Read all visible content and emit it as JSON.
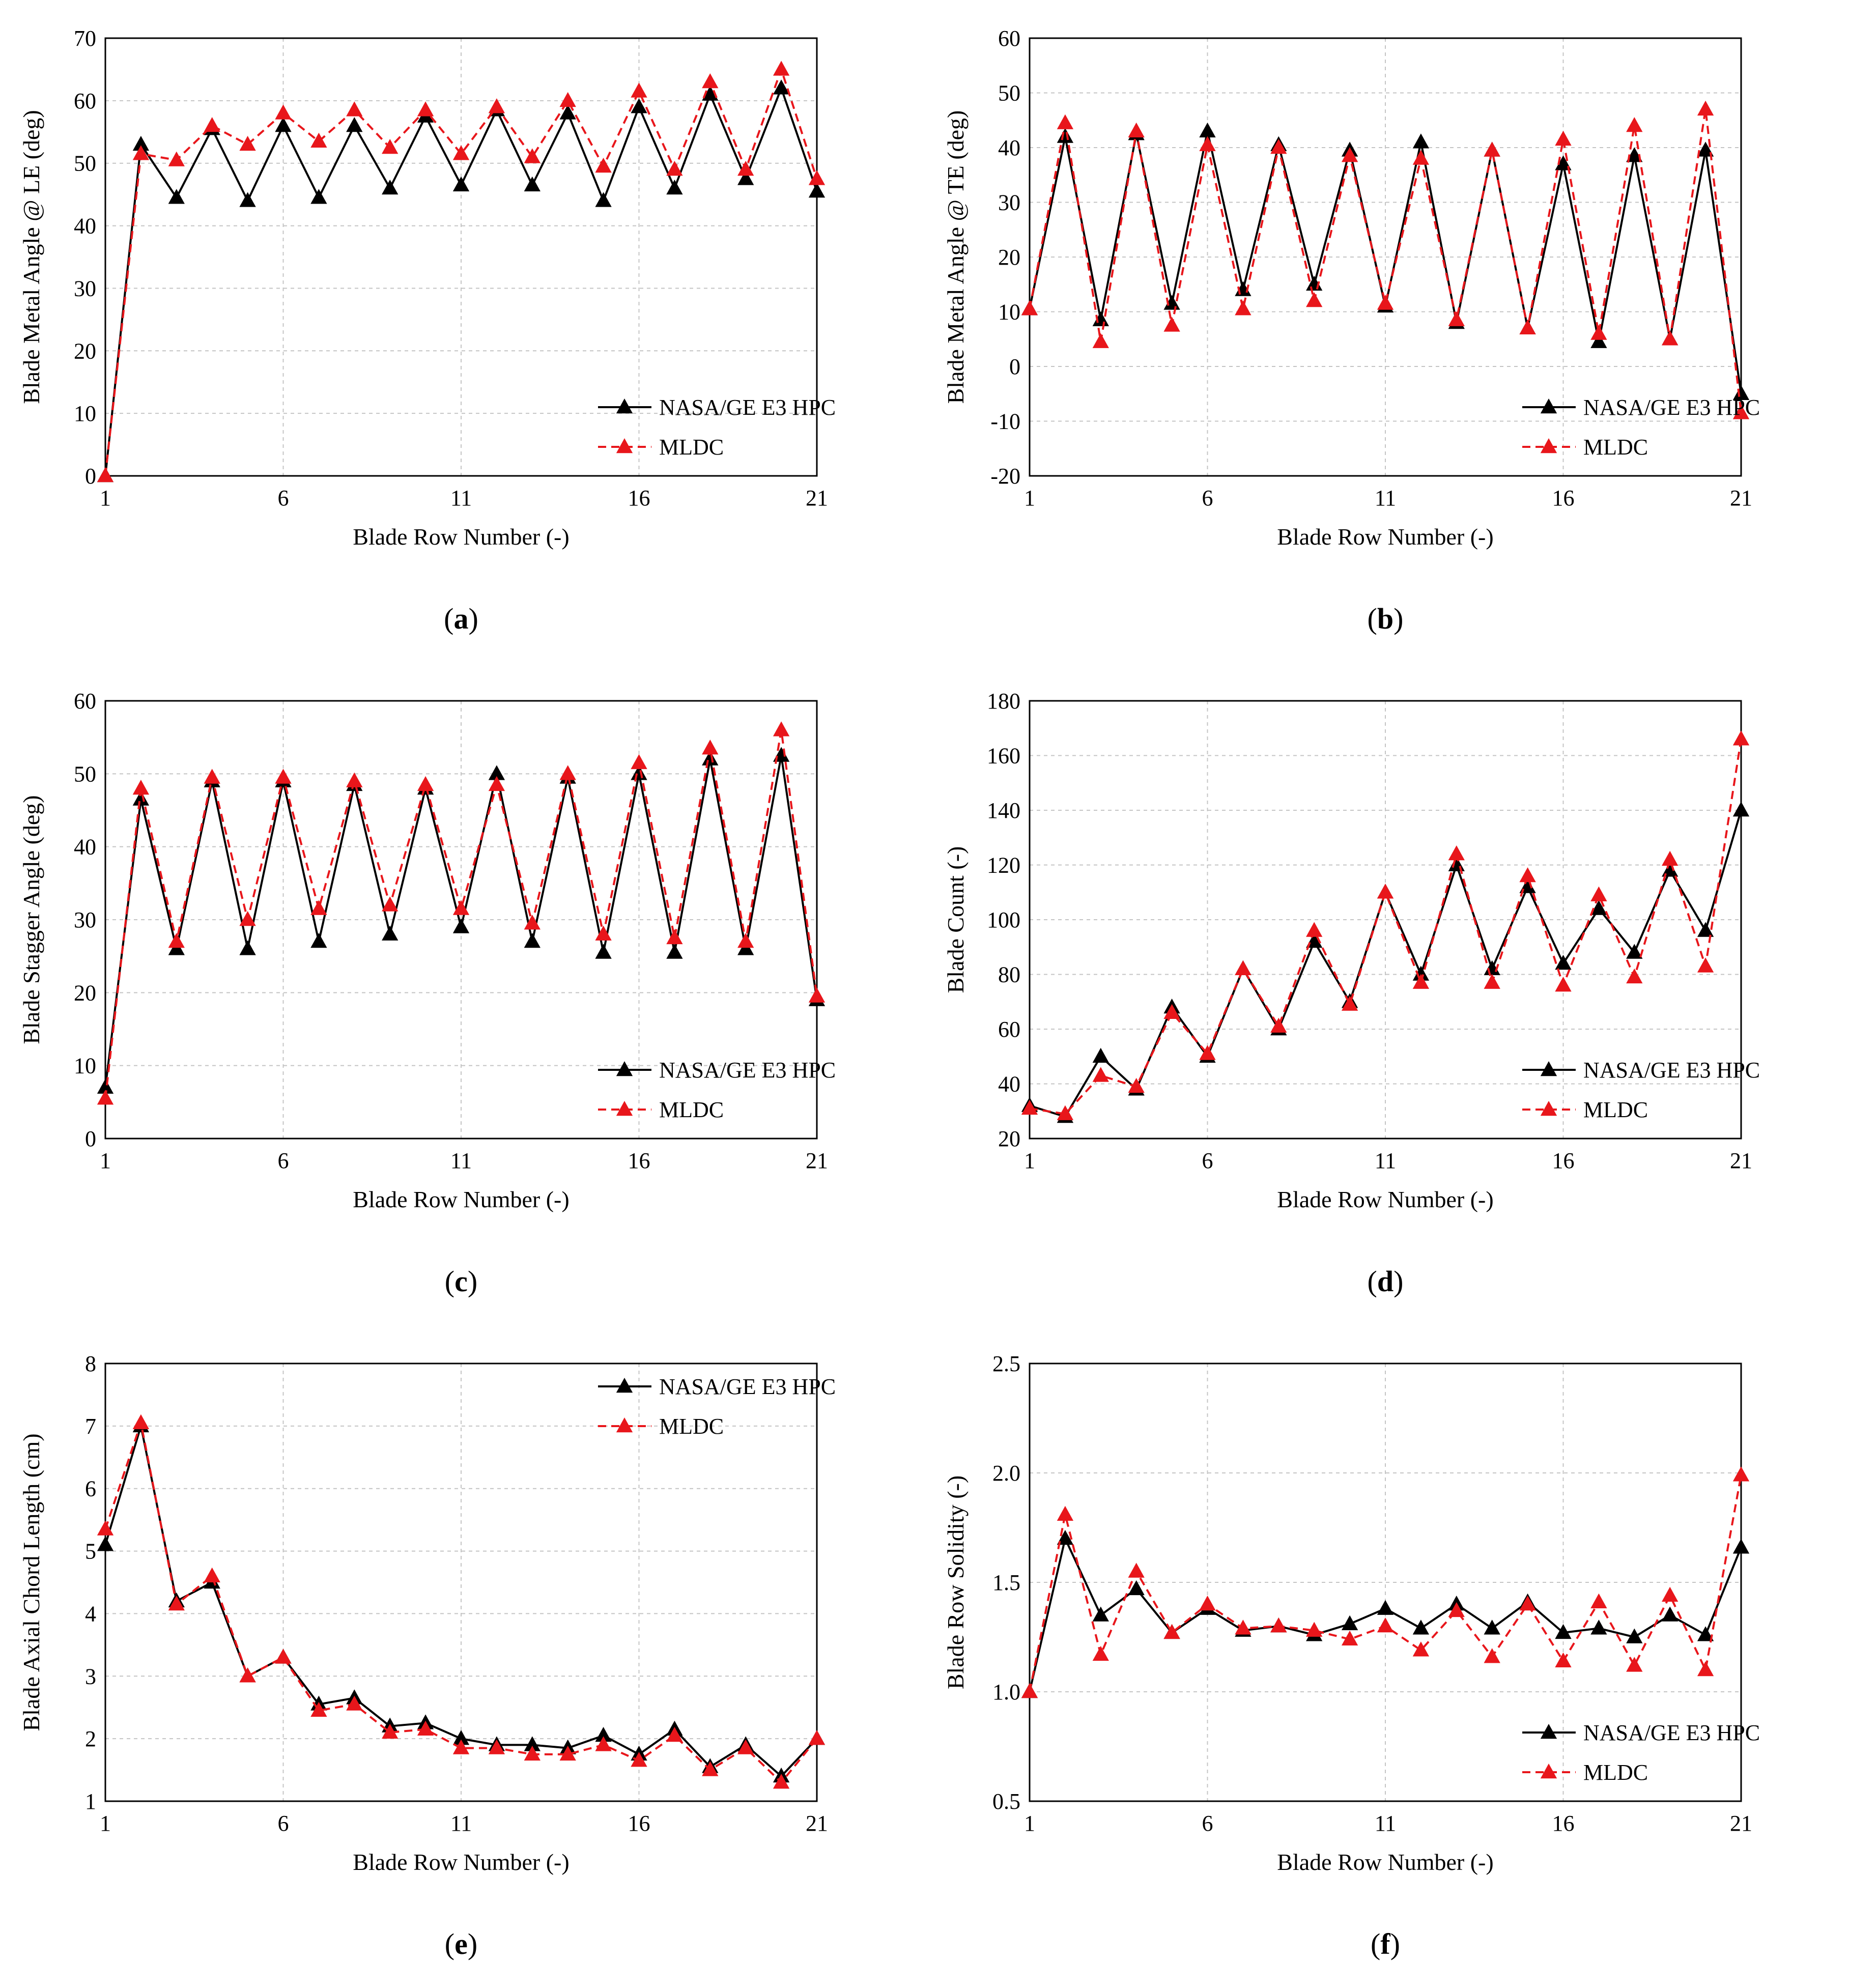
{
  "legend": {
    "series_a": "NASA/GE E3 HPC",
    "series_b": "MLDC"
  },
  "colors": {
    "series_a": "#000000",
    "series_b": "#e8161b",
    "grid": "#c4c4c4"
  },
  "chart_data": [
    {
      "id": "a",
      "caption": "a",
      "type": "line",
      "xlabel": "Blade Row Number (-)",
      "ylabel": "Blade Metal Angle @ LE (deg)",
      "xlim": [
        1,
        21
      ],
      "xticks": [
        "1",
        "6",
        "11",
        "16",
        "21"
      ],
      "ylim": [
        0,
        70
      ],
      "yticks": [
        "0",
        "10",
        "20",
        "30",
        "40",
        "50",
        "60",
        "70"
      ],
      "legend_position": "lower-right",
      "x": [
        1,
        2,
        3,
        4,
        5,
        6,
        7,
        8,
        9,
        10,
        11,
        12,
        13,
        14,
        15,
        16,
        17,
        18,
        19,
        20,
        21
      ],
      "series": [
        {
          "name": "NASA/GE E3 HPC",
          "values": [
            0,
            53,
            44.5,
            55.5,
            44,
            56,
            44.5,
            56,
            46,
            57.5,
            46.5,
            58.5,
            46.5,
            58,
            44,
            59,
            46,
            61,
            47.5,
            62,
            45.5
          ]
        },
        {
          "name": "MLDC",
          "values": [
            0,
            51.5,
            50.5,
            56,
            53,
            58,
            53.5,
            58.5,
            52.5,
            58.5,
            51.5,
            59,
            51,
            60,
            49.5,
            61.5,
            49,
            63,
            49,
            65,
            47.5
          ]
        }
      ]
    },
    {
      "id": "b",
      "caption": "b",
      "type": "line",
      "xlabel": "Blade Row Number (-)",
      "ylabel": "Blade Metal Angle @ TE (deg)",
      "xlim": [
        1,
        21
      ],
      "xticks": [
        "1",
        "6",
        "11",
        "16",
        "21"
      ],
      "ylim": [
        -20,
        60
      ],
      "yticks": [
        "-20",
        "-10",
        "0",
        "10",
        "20",
        "30",
        "40",
        "50",
        "60"
      ],
      "legend_position": "lower-right",
      "x": [
        1,
        2,
        3,
        4,
        5,
        6,
        7,
        8,
        9,
        10,
        11,
        12,
        13,
        14,
        15,
        16,
        17,
        18,
        19,
        20,
        21
      ],
      "series": [
        {
          "name": "NASA/GE E3 HPC",
          "values": [
            10.5,
            42,
            8.5,
            42.5,
            11.5,
            43,
            14,
            40.5,
            15,
            39.5,
            11,
            41,
            8,
            39.5,
            7,
            37,
            4.5,
            38.5,
            5,
            39.5,
            -5
          ]
        },
        {
          "name": "MLDC",
          "values": [
            10.5,
            44.5,
            4.5,
            43,
            7.5,
            40.5,
            10.5,
            40,
            12,
            38.5,
            11.5,
            38,
            8.5,
            39.5,
            7,
            41.5,
            6,
            44,
            5,
            47,
            -8.5
          ]
        }
      ]
    },
    {
      "id": "c",
      "caption": "c",
      "type": "line",
      "xlabel": "Blade Row Number (-)",
      "ylabel": "Blade Stagger Angle (deg)",
      "xlim": [
        1,
        21
      ],
      "xticks": [
        "1",
        "6",
        "11",
        "16",
        "21"
      ],
      "ylim": [
        0,
        60
      ],
      "yticks": [
        "0",
        "10",
        "20",
        "30",
        "40",
        "50",
        "60"
      ],
      "legend_position": "lower-right",
      "x": [
        1,
        2,
        3,
        4,
        5,
        6,
        7,
        8,
        9,
        10,
        11,
        12,
        13,
        14,
        15,
        16,
        17,
        18,
        19,
        20,
        21
      ],
      "series": [
        {
          "name": "NASA/GE E3 HPC",
          "values": [
            7,
            46.5,
            26,
            49,
            26,
            49,
            27,
            48.5,
            28,
            48,
            29,
            50,
            27,
            49.5,
            25.5,
            50,
            25.5,
            52,
            26,
            52.5,
            19
          ]
        },
        {
          "name": "MLDC",
          "values": [
            5.5,
            48,
            27,
            49.5,
            30,
            49.5,
            31.5,
            49,
            32,
            48.5,
            31.5,
            48.5,
            29.5,
            50,
            28,
            51.5,
            27.5,
            53.5,
            27,
            56,
            19.5
          ]
        }
      ]
    },
    {
      "id": "d",
      "caption": "d",
      "type": "line",
      "xlabel": "Blade Row Number (-)",
      "ylabel": "Blade Count (-)",
      "xlim": [
        1,
        21
      ],
      "xticks": [
        "1",
        "6",
        "11",
        "16",
        "21"
      ],
      "ylim": [
        20,
        180
      ],
      "yticks": [
        "20",
        "40",
        "60",
        "80",
        "100",
        "120",
        "140",
        "160",
        "180"
      ],
      "legend_position": "lower-right",
      "x": [
        1,
        2,
        3,
        4,
        5,
        6,
        7,
        8,
        9,
        10,
        11,
        12,
        13,
        14,
        15,
        16,
        17,
        18,
        19,
        20,
        21
      ],
      "series": [
        {
          "name": "NASA/GE E3 HPC",
          "values": [
            32,
            28,
            50,
            38,
            68,
            50,
            82,
            60,
            92,
            70,
            110,
            80,
            120,
            82,
            112,
            84,
            104,
            88,
            118,
            96,
            140
          ]
        },
        {
          "name": "MLDC",
          "values": [
            31,
            29,
            43,
            39,
            66,
            51,
            82,
            61,
            96,
            69,
            110,
            77,
            124,
            77,
            116,
            76,
            109,
            79,
            122,
            83,
            166
          ]
        }
      ]
    },
    {
      "id": "e",
      "caption": "e",
      "type": "line",
      "xlabel": "Blade Row Number (-)",
      "ylabel": "Blade Axial Chord Length (cm)",
      "xlim": [
        1,
        21
      ],
      "xticks": [
        "1",
        "6",
        "11",
        "16",
        "21"
      ],
      "ylim": [
        1,
        8
      ],
      "yticks": [
        "1",
        "2",
        "3",
        "4",
        "5",
        "6",
        "7",
        "8"
      ],
      "legend_position": "upper-right",
      "x": [
        1,
        2,
        3,
        4,
        5,
        6,
        7,
        8,
        9,
        10,
        11,
        12,
        13,
        14,
        15,
        16,
        17,
        18,
        19,
        20,
        21
      ],
      "series": [
        {
          "name": "NASA/GE E3 HPC",
          "values": [
            5.1,
            7.0,
            4.2,
            4.5,
            3.0,
            3.3,
            2.55,
            2.65,
            2.2,
            2.25,
            2.0,
            1.9,
            1.9,
            1.85,
            2.05,
            1.75,
            2.15,
            1.55,
            1.9,
            1.4,
            2.0
          ]
        },
        {
          "name": "MLDC",
          "values": [
            5.35,
            7.05,
            4.15,
            4.6,
            3.0,
            3.3,
            2.45,
            2.55,
            2.1,
            2.15,
            1.85,
            1.85,
            1.75,
            1.75,
            1.9,
            1.65,
            2.05,
            1.5,
            1.85,
            1.3,
            2.0
          ]
        }
      ]
    },
    {
      "id": "f",
      "caption": "f",
      "type": "line",
      "xlabel": "Blade Row Number (-)",
      "ylabel": "Blade Row Solidity (-)",
      "xlim": [
        1,
        21
      ],
      "xticks": [
        "1",
        "6",
        "11",
        "16",
        "21"
      ],
      "ylim": [
        0.5,
        2.5
      ],
      "yticks": [
        "0.5",
        "1.0",
        "1.5",
        "2.0",
        "2.5"
      ],
      "legend_position": "lower-right",
      "x": [
        1,
        2,
        3,
        4,
        5,
        6,
        7,
        8,
        9,
        10,
        11,
        12,
        13,
        14,
        15,
        16,
        17,
        18,
        19,
        20,
        21
      ],
      "series": [
        {
          "name": "NASA/GE E3 HPC",
          "values": [
            1.0,
            1.7,
            1.35,
            1.47,
            1.27,
            1.38,
            1.28,
            1.3,
            1.26,
            1.31,
            1.38,
            1.29,
            1.4,
            1.29,
            1.41,
            1.27,
            1.29,
            1.25,
            1.35,
            1.26,
            1.66
          ]
        },
        {
          "name": "MLDC",
          "values": [
            1.0,
            1.81,
            1.17,
            1.55,
            1.27,
            1.4,
            1.29,
            1.3,
            1.28,
            1.24,
            1.3,
            1.19,
            1.37,
            1.16,
            1.4,
            1.14,
            1.41,
            1.12,
            1.44,
            1.1,
            1.99
          ]
        }
      ]
    }
  ]
}
